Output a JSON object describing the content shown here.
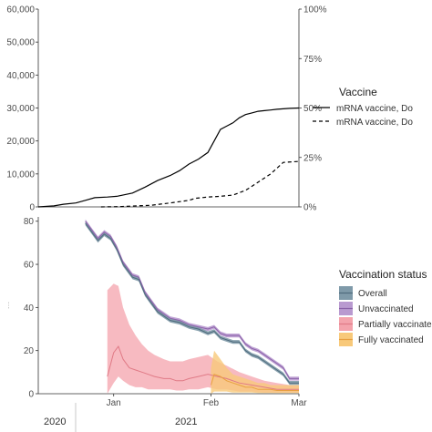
{
  "colors": {
    "overall": "#4e6b7d",
    "overall_fill": "#7f9aa9",
    "unvaccinated": "#8a62a8",
    "unvaccinated_fill": "#b99ad0",
    "partial": "#e07a86",
    "partial_fill": "#f4a3ac",
    "fully": "#e8a040",
    "fully_fill": "#f8c97a",
    "axis": "#333333",
    "tick_text": "#4d4d4d",
    "panel_bg": "#ffffff"
  },
  "x_axis": {
    "ticks": [
      "Jan",
      "Feb",
      "Mar"
    ],
    "years": [
      "2020",
      "2021"
    ]
  },
  "top_chart": {
    "title": "",
    "left_ticks": [
      "0",
      "10,000",
      "20,000",
      "30,000",
      "40,000",
      "50,000",
      "60,000"
    ],
    "right_ticks": [
      "0%",
      "25%",
      "50%",
      "75%",
      "100%"
    ],
    "legend": {
      "title": "Vaccine",
      "entries": [
        {
          "label": "mRNA vaccine, Do",
          "dash": "solid"
        },
        {
          "label": "mRNA vaccine, Do",
          "dash": "dashed"
        }
      ]
    }
  },
  "bottom_chart": {
    "title": "",
    "ylabel": "…",
    "left_ticks": [
      "0",
      "20",
      "40",
      "60",
      "80"
    ],
    "legend": {
      "title": "Vaccination status",
      "entries": [
        {
          "label": "Overall",
          "key": "overall"
        },
        {
          "label": "Unvaccinated",
          "key": "unvaccinated"
        },
        {
          "label": "Partially vaccinated",
          "key": "partial"
        },
        {
          "label": "Fully vaccinated",
          "key": "fully"
        }
      ]
    }
  },
  "chart_data": [
    {
      "type": "line",
      "title": "",
      "xlabel": "",
      "ylabel": "",
      "x_unit": "days since Dec 8, 2020",
      "xlim": [
        0,
        83
      ],
      "ylim": [
        0,
        60000
      ],
      "y2lim": [
        0,
        100
      ],
      "y2_format": "percent",
      "grid": false,
      "legend_position": "right",
      "series": [
        {
          "name": "mRNA vaccine, Do",
          "dash": "solid",
          "x": [
            0,
            5,
            8,
            12,
            15,
            18,
            22,
            25,
            30,
            34,
            38,
            42,
            45,
            48,
            51,
            54,
            56,
            58,
            60,
            62,
            64,
            66,
            68,
            70,
            72,
            74,
            76,
            80,
            83
          ],
          "y": [
            0,
            300,
            800,
            1200,
            2000,
            2800,
            3000,
            3200,
            4200,
            6000,
            8000,
            9500,
            11000,
            13000,
            14500,
            16500,
            20000,
            23500,
            24500,
            25500,
            27000,
            28000,
            28500,
            29000,
            29200,
            29400,
            29600,
            29900,
            30000
          ]
        },
        {
          "name": "mRNA vaccine, Do",
          "dash": "dashed",
          "x": [
            20,
            26,
            30,
            36,
            42,
            48,
            50,
            54,
            58,
            62,
            66,
            70,
            74,
            78,
            83
          ],
          "y": [
            0,
            80,
            250,
            500,
            1200,
            2000,
            2600,
            3000,
            3200,
            3600,
            5000,
            7500,
            10000,
            13500,
            13800
          ]
        }
      ]
    },
    {
      "type": "area",
      "title": "",
      "xlabel": "",
      "ylabel": "",
      "x_unit": "days since Dec 8, 2020",
      "xlim": [
        0,
        83
      ],
      "ylim": [
        0,
        82
      ],
      "grid": false,
      "legend_position": "right",
      "series": [
        {
          "name": "Overall",
          "key": "overall",
          "x": [
            15,
            17,
            19,
            21,
            23,
            25,
            27,
            30,
            32,
            34,
            36,
            38,
            40,
            42,
            45,
            48,
            51,
            54,
            56,
            58,
            60,
            62,
            64,
            66,
            68,
            70,
            72,
            75,
            78,
            80,
            83
          ],
          "y": [
            79,
            75,
            71,
            74,
            72,
            67,
            60,
            54,
            53,
            46,
            42,
            38,
            36,
            34,
            33,
            31,
            30,
            28,
            29,
            26,
            25,
            24,
            24,
            20,
            18,
            17,
            15,
            12,
            9,
            5,
            5
          ],
          "band": 0.9
        },
        {
          "name": "Unvaccinated",
          "key": "unvaccinated",
          "x": [
            15,
            17,
            19,
            21,
            23,
            25,
            27,
            30,
            32,
            34,
            36,
            38,
            40,
            42,
            45,
            48,
            51,
            54,
            56,
            58,
            60,
            62,
            64,
            66,
            68,
            70,
            72,
            75,
            78,
            80,
            83
          ],
          "y": [
            80,
            76,
            72,
            75,
            73,
            68,
            61,
            55,
            54,
            47,
            43,
            39,
            37,
            35,
            34,
            32,
            31,
            30,
            31,
            28,
            27,
            27,
            27,
            23,
            21,
            20,
            18,
            15,
            12,
            7,
            7
          ],
          "band": 0.9
        },
        {
          "name": "Partially vaccinated",
          "key": "partial",
          "x": [
            22,
            24,
            25.5,
            27,
            29,
            31,
            33,
            35,
            37,
            40,
            42,
            44,
            46,
            48,
            51,
            54,
            57,
            60,
            64,
            68,
            72,
            76,
            80,
            83
          ],
          "y": [
            8,
            19,
            22,
            16,
            12,
            11,
            10,
            9,
            8,
            7,
            7,
            6,
            6,
            7,
            8,
            9,
            8,
            7,
            5,
            4,
            3,
            2,
            2,
            2
          ],
          "lo": [
            0,
            5,
            8,
            6,
            4,
            3,
            3,
            2,
            2,
            2,
            2,
            1.5,
            1.5,
            2,
            2,
            3,
            2,
            2,
            1,
            1,
            0.5,
            0.5,
            0.5,
            0.5
          ],
          "hi": [
            48,
            51,
            50,
            40,
            32,
            27,
            23,
            20,
            18,
            16,
            15,
            15,
            15,
            16,
            17,
            18,
            15,
            13,
            10,
            8,
            6,
            5,
            4,
            4
          ]
        },
        {
          "name": "Fully vaccinated",
          "key": "fully",
          "x": [
            55,
            56,
            58,
            60,
            62,
            64,
            66,
            68,
            70,
            72,
            74,
            76,
            78,
            80,
            83
          ],
          "y": [
            4,
            9,
            8,
            6,
            5,
            4,
            3,
            3,
            2,
            2,
            2,
            1.5,
            1.5,
            1.5,
            1.5
          ],
          "lo": [
            0,
            1,
            1,
            1,
            0.5,
            0.5,
            0.5,
            0.5,
            0.3,
            0.3,
            0.3,
            0.3,
            0.3,
            0.3,
            0.3
          ],
          "hi": [
            12,
            20,
            16,
            12,
            9,
            8,
            7,
            6,
            5,
            5,
            4,
            4,
            4,
            4,
            4
          ]
        }
      ]
    }
  ]
}
